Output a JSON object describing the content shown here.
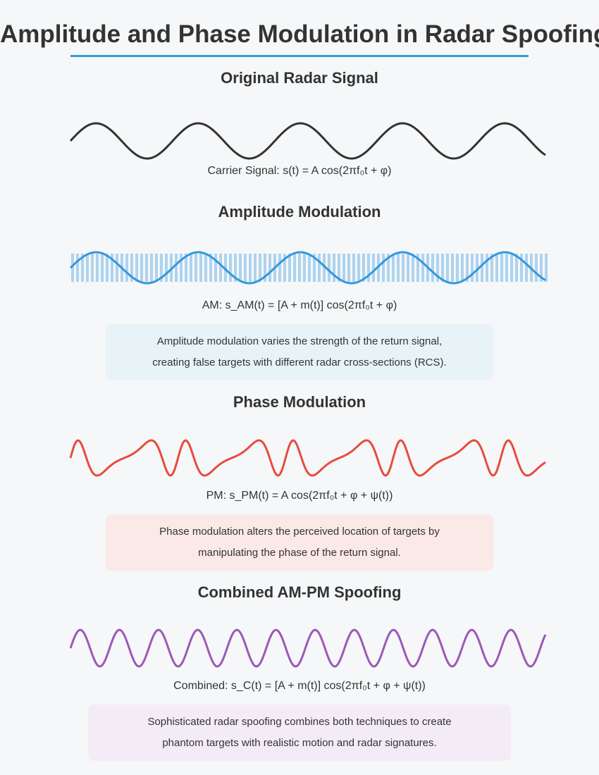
{
  "title": "Amplitude and Phase Modulation in Radar Spoofing",
  "sections": {
    "original": {
      "title": "Original Radar Signal",
      "formula": "Carrier Signal: s(t) = A cos(2πf₀t + φ)"
    },
    "am": {
      "title": "Amplitude Modulation",
      "formula": "AM: s_AM(t) = [A + m(t)] cos(2πf₀t + φ)",
      "note": [
        "Amplitude modulation varies the strength of the return signal,",
        "creating false targets with different radar cross-sections (RCS)."
      ]
    },
    "pm": {
      "title": "Phase Modulation",
      "formula": "PM: s_PM(t) = A cos(2πf₀t + φ + ψ(t))",
      "note": [
        "Phase modulation alters the perceived location of targets by",
        "manipulating the phase of the return signal."
      ]
    },
    "combined": {
      "title": "Combined AM-PM Spoofing",
      "formula": "Combined: s_C(t) = [A + m(t)] cos(2πf₀t + φ + ψ(t))",
      "note": [
        "Sophisticated radar spoofing combines both techniques to create",
        "phantom targets with realistic motion and radar signatures."
      ]
    }
  },
  "colors": {
    "title_rule": "#3498db",
    "carrier": "#333333",
    "am": "#3498db",
    "am_bars": "#aed3ee",
    "pm": "#e74c3c",
    "combined": "#9b59b6",
    "am_note_bg": "#e8f3f8",
    "pm_note_bg": "#fbe9e7",
    "combined_note_bg": "#f3ecf6"
  }
}
